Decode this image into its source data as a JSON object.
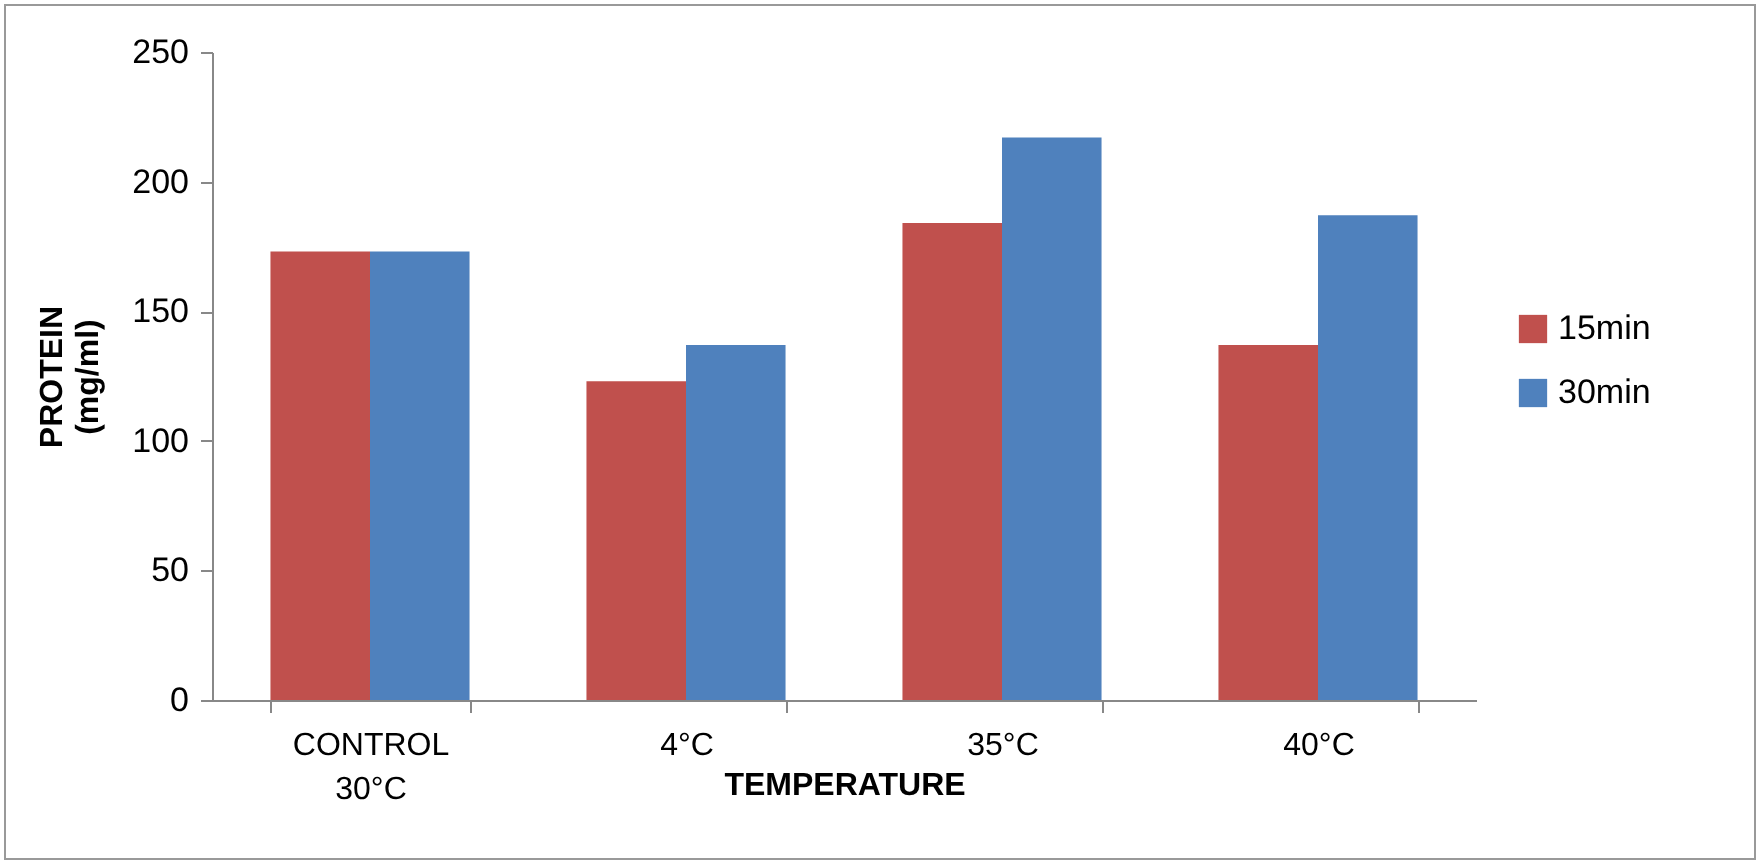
{
  "chart_data": {
    "type": "bar",
    "xlabel": "TEMPERATURE",
    "ylabel": "PROTEIN (mg/ml)",
    "categories": [
      "CONTROL 30°C",
      "4°C",
      "35°C",
      "40°C"
    ],
    "series": [
      {
        "name": "15min",
        "color": "#c0504d",
        "values": [
          173,
          123,
          184,
          137
        ]
      },
      {
        "name": "30min",
        "color": "#4f81bd",
        "values": [
          173,
          137,
          217,
          187
        ]
      }
    ],
    "ylim": [
      0,
      250
    ],
    "yticks": [
      0,
      50,
      100,
      150,
      200,
      250
    ],
    "grid": false,
    "legend": "right"
  }
}
